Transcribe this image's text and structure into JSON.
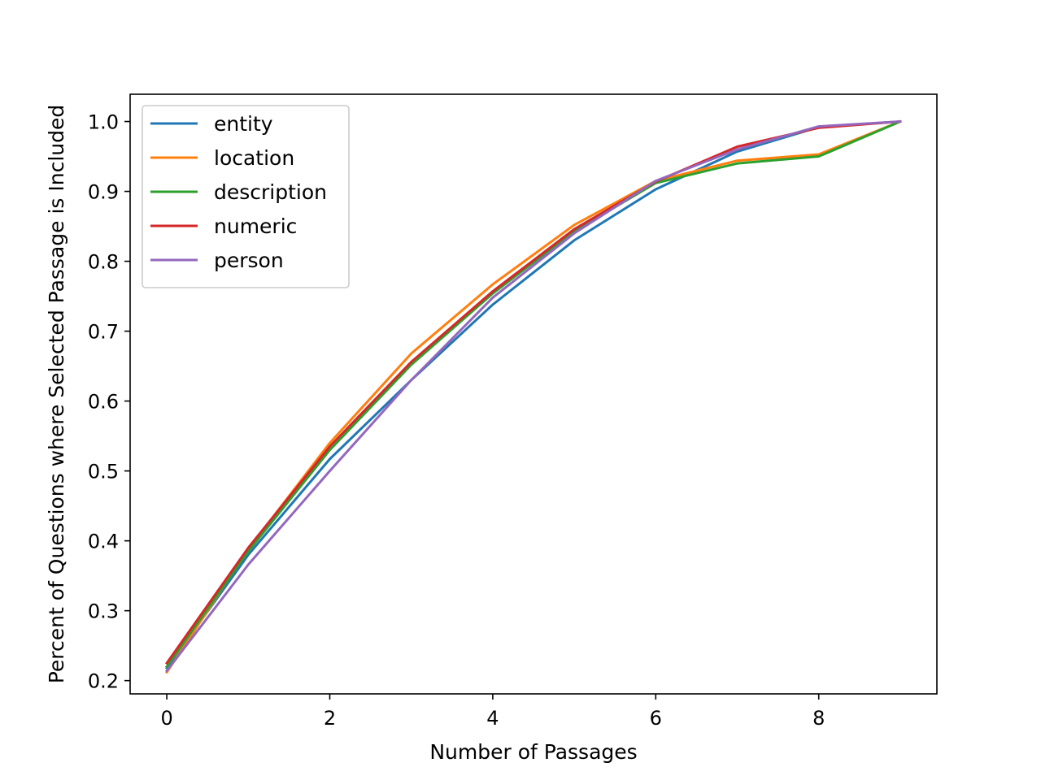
{
  "chart_data": {
    "type": "line",
    "xlabel": "Number of Passages",
    "ylabel": "Percent of Questions where Selected Passage is Included",
    "xlim": [
      -0.45,
      9.45
    ],
    "ylim": [
      0.181,
      1.039
    ],
    "xticks": [
      0,
      2,
      4,
      6,
      8
    ],
    "xtick_labels": [
      "0",
      "2",
      "4",
      "6",
      "8"
    ],
    "yticks": [
      0.2,
      0.3,
      0.4,
      0.5,
      0.6,
      0.7,
      0.8,
      0.9,
      1.0
    ],
    "ytick_labels": [
      "0.2",
      "0.3",
      "0.4",
      "0.5",
      "0.6",
      "0.7",
      "0.8",
      "0.9",
      "1.0"
    ],
    "grid": false,
    "legend_position": "upper-left",
    "x": [
      0,
      1,
      2,
      3,
      4,
      5,
      6,
      7,
      8,
      9
    ],
    "series": [
      {
        "name": "entity",
        "color": "#1f77b4",
        "values": [
          0.218,
          0.38,
          0.517,
          0.63,
          0.738,
          0.83,
          0.903,
          0.957,
          0.992,
          1.0
        ]
      },
      {
        "name": "location",
        "color": "#ff7f0e",
        "values": [
          0.212,
          0.388,
          0.54,
          0.668,
          0.767,
          0.852,
          0.915,
          0.944,
          0.953,
          1.0
        ]
      },
      {
        "name": "description",
        "color": "#2ca02c",
        "values": [
          0.22,
          0.385,
          0.53,
          0.652,
          0.754,
          0.843,
          0.912,
          0.94,
          0.95,
          1.0
        ]
      },
      {
        "name": "numeric",
        "color": "#d62728",
        "values": [
          0.225,
          0.39,
          0.535,
          0.656,
          0.757,
          0.846,
          0.914,
          0.964,
          0.991,
          1.0
        ]
      },
      {
        "name": "person",
        "color": "#9467bd",
        "values": [
          0.214,
          0.366,
          0.5,
          0.63,
          0.748,
          0.84,
          0.915,
          0.96,
          0.993,
          1.0
        ]
      }
    ]
  }
}
